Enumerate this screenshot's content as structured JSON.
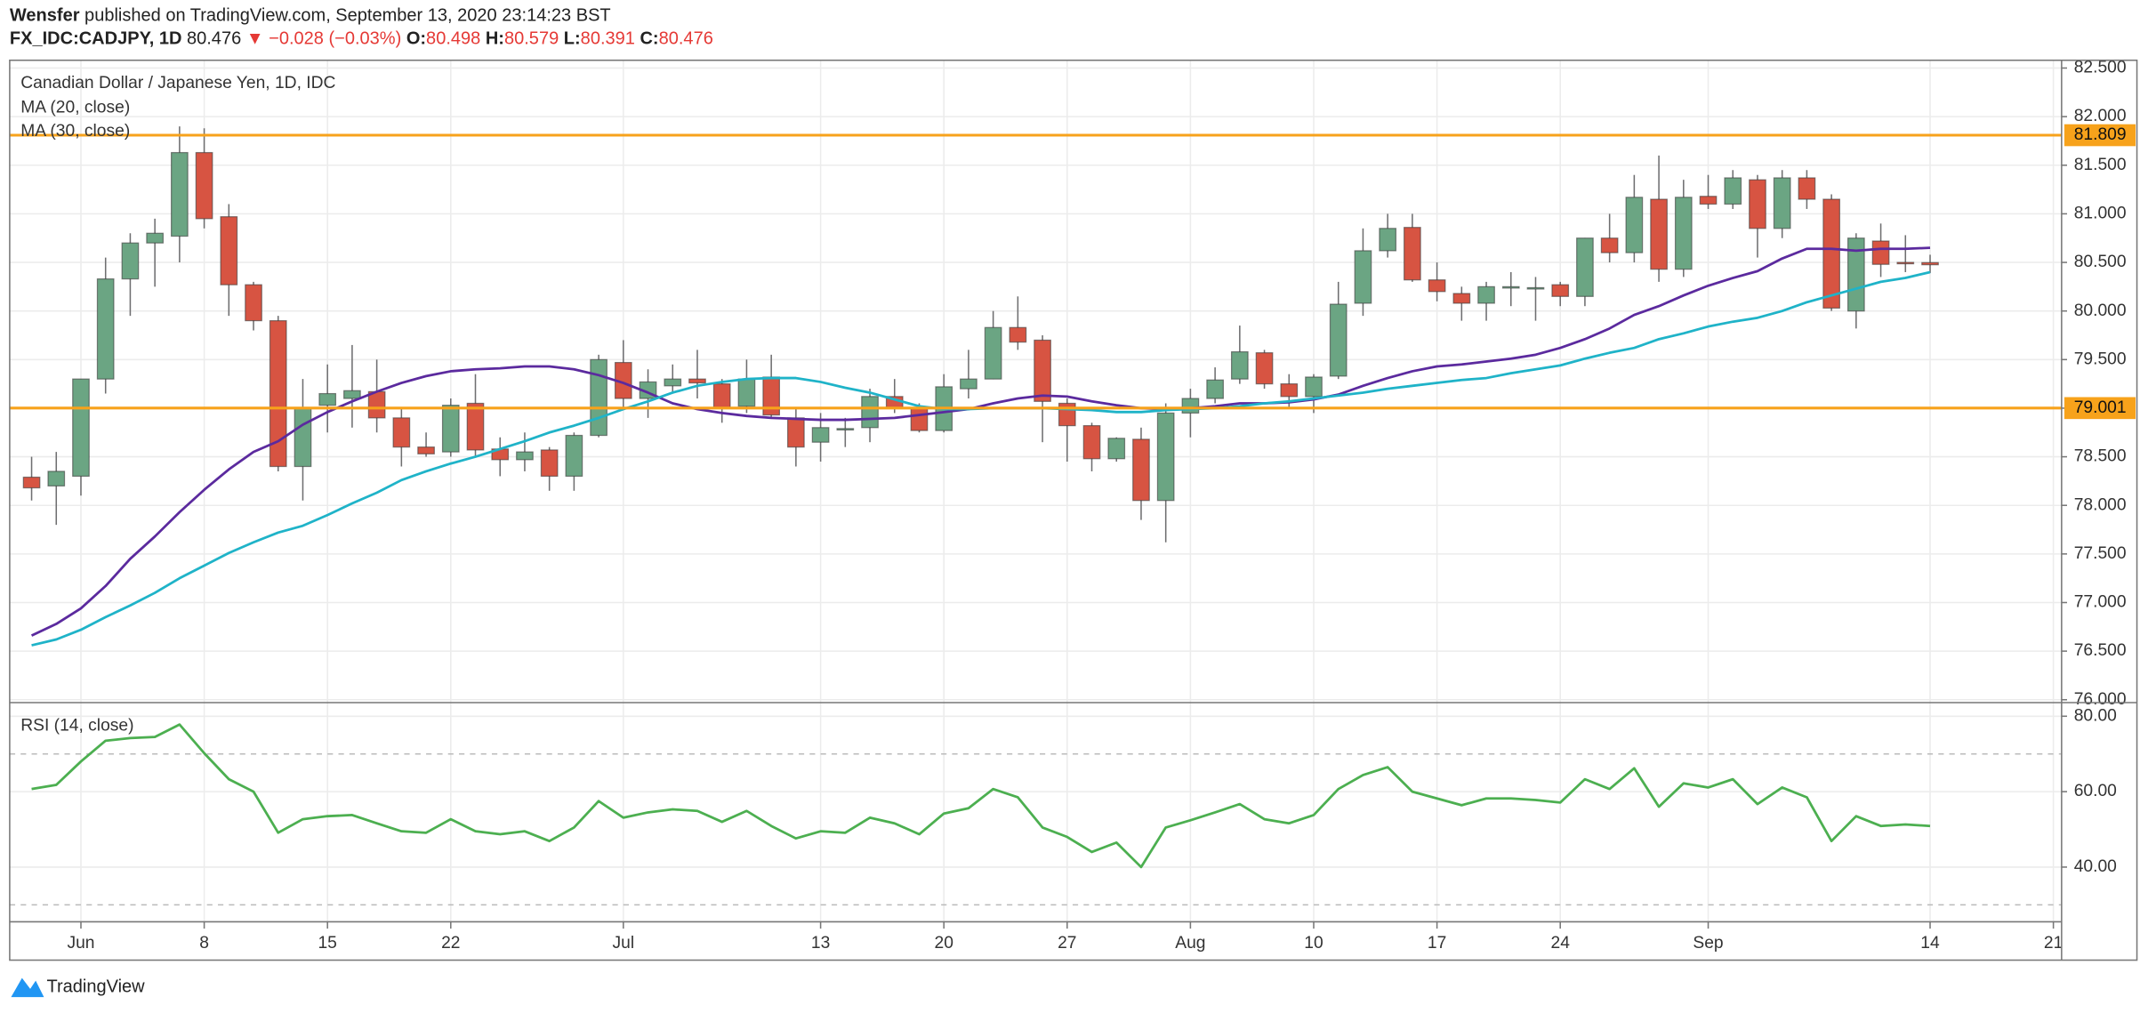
{
  "header": {
    "author": "Wensfer",
    "published": "published on TradingView.com, September 13, 2020 23:14:23 BST",
    "symbol": "FX_IDC:CADJPY, 1D",
    "last": 80.476,
    "change": "▼ −0.028 (−0.03%)",
    "ohlc": [
      {
        "label": "O:",
        "value": 80.498
      },
      {
        "label": "H:",
        "value": 80.579
      },
      {
        "label": "L:",
        "value": 80.391
      },
      {
        "label": "C:",
        "value": 80.476
      }
    ]
  },
  "chart_data": [
    {
      "type": "candlestick",
      "title": "Canadian Dollar / Japanese Yen, 1D, IDC",
      "categories": [
        null,
        null,
        "Jun",
        null,
        null,
        null,
        null,
        "8",
        null,
        null,
        null,
        null,
        "15",
        null,
        null,
        null,
        null,
        "22",
        null,
        null,
        null,
        null,
        null,
        null,
        "Jul",
        null,
        null,
        null,
        null,
        null,
        null,
        null,
        "13",
        null,
        null,
        null,
        null,
        "20",
        null,
        null,
        null,
        null,
        "27",
        null,
        null,
        null,
        null,
        "Aug",
        null,
        null,
        null,
        null,
        "10",
        null,
        null,
        null,
        null,
        "17",
        null,
        null,
        null,
        null,
        "24",
        null,
        null,
        null,
        null,
        null,
        "Sep",
        null,
        null,
        null,
        null,
        null,
        null,
        null,
        null,
        "14",
        null,
        null,
        null,
        null,
        "21"
      ],
      "open": [
        78.29,
        78.2,
        78.3,
        79.3,
        80.33,
        80.7,
        80.77,
        81.63,
        80.97,
        80.27,
        79.9,
        78.4,
        79.03,
        79.1,
        79.17,
        78.9,
        78.6,
        78.55,
        79.05,
        78.58,
        78.47,
        78.57,
        78.3,
        78.72,
        79.47,
        79.1,
        79.23,
        79.3,
        79.25,
        79.02,
        79.32,
        78.9,
        78.65,
        78.78,
        78.8,
        79.12,
        79.0,
        78.77,
        79.2,
        79.3,
        79.83,
        79.7,
        79.05,
        78.82,
        78.48,
        78.68,
        78.05,
        78.95,
        79.1,
        79.3,
        79.57,
        79.25,
        79.12,
        79.33,
        80.08,
        80.62,
        80.86,
        80.32,
        80.18,
        80.08,
        80.24,
        80.24,
        80.27,
        80.15,
        80.75,
        80.6,
        81.15,
        80.43,
        81.18,
        81.1,
        81.35,
        80.85,
        81.37,
        81.15,
        80.0,
        80.72,
        80.5,
        80.498,
        null,
        null,
        null,
        null,
        null
      ],
      "high": [
        78.5,
        78.55,
        79.3,
        80.55,
        80.8,
        80.95,
        81.9,
        81.88,
        81.1,
        80.3,
        79.95,
        79.3,
        79.45,
        79.65,
        79.5,
        79.0,
        78.75,
        79.1,
        79.35,
        78.7,
        78.75,
        78.6,
        78.75,
        79.55,
        79.7,
        79.4,
        79.45,
        79.6,
        79.3,
        79.5,
        79.55,
        79.0,
        78.95,
        78.9,
        79.2,
        79.3,
        79.05,
        79.35,
        79.6,
        80.0,
        80.15,
        79.75,
        79.1,
        78.85,
        78.7,
        78.8,
        79.05,
        79.2,
        79.42,
        79.85,
        79.6,
        79.35,
        79.35,
        80.3,
        80.85,
        81.0,
        81.0,
        80.5,
        80.25,
        80.3,
        80.4,
        80.35,
        80.3,
        80.75,
        81.0,
        81.4,
        81.6,
        81.35,
        81.4,
        81.45,
        81.4,
        81.45,
        81.45,
        81.2,
        80.8,
        80.9,
        80.78,
        80.579,
        null,
        null,
        null,
        null,
        null
      ],
      "low": [
        78.05,
        77.8,
        78.1,
        79.15,
        79.95,
        80.25,
        80.5,
        80.85,
        79.95,
        79.8,
        78.35,
        78.05,
        78.75,
        78.8,
        78.75,
        78.4,
        78.5,
        78.5,
        78.5,
        78.3,
        78.35,
        78.15,
        78.15,
        78.7,
        79.0,
        78.9,
        79.15,
        79.1,
        78.85,
        78.95,
        78.9,
        78.4,
        78.45,
        78.6,
        78.65,
        78.95,
        78.75,
        78.75,
        79.1,
        79.3,
        79.6,
        78.65,
        78.45,
        78.35,
        78.45,
        77.85,
        77.62,
        78.7,
        79.05,
        79.25,
        79.2,
        79.0,
        78.95,
        79.3,
        79.95,
        80.55,
        80.3,
        80.1,
        79.9,
        79.9,
        80.05,
        79.9,
        80.05,
        80.05,
        80.5,
        80.5,
        80.3,
        80.35,
        81.05,
        81.05,
        80.55,
        80.75,
        81.05,
        80.0,
        79.82,
        80.35,
        80.4,
        80.391,
        null,
        null,
        null,
        null,
        null
      ],
      "close": [
        78.18,
        78.35,
        79.3,
        80.33,
        80.7,
        80.8,
        81.63,
        80.95,
        80.27,
        79.9,
        78.4,
        79.0,
        79.15,
        79.18,
        78.9,
        78.6,
        78.53,
        79.03,
        78.57,
        78.47,
        78.55,
        78.3,
        78.72,
        79.5,
        79.1,
        79.27,
        79.3,
        79.26,
        79.0,
        79.3,
        78.93,
        78.6,
        78.8,
        78.79,
        79.12,
        79.0,
        78.77,
        79.22,
        79.3,
        79.83,
        79.68,
        79.07,
        78.82,
        78.48,
        78.69,
        78.05,
        78.95,
        79.1,
        79.29,
        79.58,
        79.25,
        79.12,
        79.32,
        80.07,
        80.62,
        80.85,
        80.32,
        80.2,
        80.08,
        80.25,
        80.25,
        80.24,
        80.15,
        80.75,
        80.6,
        81.17,
        80.43,
        81.17,
        81.1,
        81.37,
        80.85,
        81.37,
        81.15,
        80.03,
        80.75,
        80.48,
        80.49,
        80.476,
        null,
        null,
        null,
        null,
        null
      ],
      "up_color": "#6ba583",
      "down_color": "#d75442",
      "wick_color": "#6e6e70",
      "series": [
        {
          "name": "MA (20, close)",
          "color": "#5b2a9e",
          "values": [
            76.66,
            76.78,
            76.94,
            77.17,
            77.45,
            77.68,
            77.93,
            78.16,
            78.37,
            78.55,
            78.66,
            78.83,
            78.96,
            79.07,
            79.17,
            79.26,
            79.33,
            79.38,
            79.4,
            79.41,
            79.43,
            79.43,
            79.4,
            79.34,
            79.26,
            79.16,
            79.05,
            78.99,
            78.95,
            78.92,
            78.9,
            78.89,
            78.88,
            78.88,
            78.89,
            78.9,
            78.93,
            78.96,
            78.99,
            79.05,
            79.1,
            79.13,
            79.12,
            79.07,
            79.03,
            79.0,
            78.99,
            79.0,
            79.02,
            79.05,
            79.05,
            79.06,
            79.09,
            79.14,
            79.23,
            79.31,
            79.38,
            79.43,
            79.45,
            79.48,
            79.51,
            79.55,
            79.62,
            79.71,
            79.82,
            79.96,
            80.05,
            80.16,
            80.26,
            80.34,
            80.41,
            80.54,
            80.64,
            80.64,
            80.62,
            80.64,
            80.64,
            80.65,
            null,
            null,
            null,
            null,
            null
          ]
        },
        {
          "name": "MA (30, close)",
          "color": "#1fb3c8",
          "values": [
            76.56,
            76.62,
            76.72,
            76.85,
            76.97,
            77.1,
            77.25,
            77.38,
            77.51,
            77.62,
            77.72,
            77.79,
            77.9,
            78.02,
            78.13,
            78.26,
            78.35,
            78.43,
            78.5,
            78.58,
            78.66,
            78.75,
            78.82,
            78.9,
            78.99,
            79.07,
            79.16,
            79.23,
            79.27,
            79.3,
            79.31,
            79.31,
            79.27,
            79.21,
            79.16,
            79.09,
            79.02,
            78.99,
            78.99,
            79.0,
            79.0,
            79.0,
            78.99,
            78.98,
            78.96,
            78.96,
            78.98,
            78.99,
            79.0,
            79.02,
            79.05,
            79.07,
            79.1,
            79.13,
            79.16,
            79.2,
            79.23,
            79.26,
            79.29,
            79.31,
            79.36,
            79.4,
            79.44,
            79.51,
            79.57,
            79.62,
            79.71,
            79.77,
            79.84,
            79.89,
            79.93,
            80.0,
            80.09,
            80.16,
            80.23,
            80.3,
            80.34,
            80.4,
            null,
            null,
            null,
            null,
            null
          ]
        }
      ],
      "hlines": [
        81.809,
        79.001
      ],
      "hline_color": "#f7a21b",
      "ylim": [
        75.97,
        82.58
      ],
      "yticks": [
        {
          "value": 76,
          "label": "76.000"
        },
        {
          "value": 76.5,
          "label": "76.500"
        },
        {
          "value": 77,
          "label": "77.000"
        },
        {
          "value": 77.5,
          "label": "77.500"
        },
        {
          "value": 78,
          "label": "78.000"
        },
        {
          "value": 78.5,
          "label": "78.500"
        },
        {
          "value": 79,
          "label": "79.000"
        },
        {
          "value": 79.5,
          "label": "79.500"
        },
        {
          "value": 80,
          "label": "80.000"
        },
        {
          "value": 80.5,
          "label": "80.500"
        },
        {
          "value": 81,
          "label": "81.000"
        },
        {
          "value": 81.5,
          "label": "81.500"
        },
        {
          "value": 82,
          "label": "82.000"
        },
        {
          "value": 82.5,
          "label": "82.500"
        }
      ],
      "grid": true
    },
    {
      "type": "line",
      "series": [
        {
          "name": "RSI (14, close)",
          "color": "#4caf50",
          "values": [
            60.7,
            61.8,
            68.0,
            73.5,
            74.2,
            74.5,
            77.8,
            70.2,
            63.3,
            60.0,
            49.1,
            52.7,
            53.5,
            53.8,
            51.6,
            49.5,
            49.1,
            52.7,
            49.5,
            48.7,
            49.5,
            46.9,
            50.5,
            57.5,
            53.1,
            54.5,
            55.3,
            54.9,
            52.0,
            54.9,
            50.9,
            47.6,
            49.5,
            49.1,
            53.1,
            51.6,
            48.7,
            54.2,
            55.6,
            60.7,
            58.5,
            50.5,
            48.0,
            44.0,
            46.5,
            40.0,
            50.5,
            52.4,
            54.5,
            56.7,
            52.7,
            51.6,
            53.8,
            60.7,
            64.4,
            66.5,
            60.0,
            58.2,
            56.4,
            58.2,
            58.2,
            57.8,
            57.1,
            63.3,
            60.7,
            66.2,
            56.0,
            62.2,
            61.1,
            63.3,
            56.7,
            61.1,
            58.5,
            46.9,
            53.5,
            50.9,
            51.3,
            50.9,
            null,
            null,
            null,
            null,
            null
          ]
        }
      ],
      "bands": [
        30,
        70
      ],
      "ylim": [
        25.5,
        83.6
      ],
      "yticks": [
        {
          "value": 40,
          "label": "40.00"
        },
        {
          "value": 60,
          "label": "60.00"
        },
        {
          "value": 80,
          "label": "80.00"
        }
      ],
      "grid": true
    }
  ],
  "footer": {
    "brand": "TradingView"
  }
}
